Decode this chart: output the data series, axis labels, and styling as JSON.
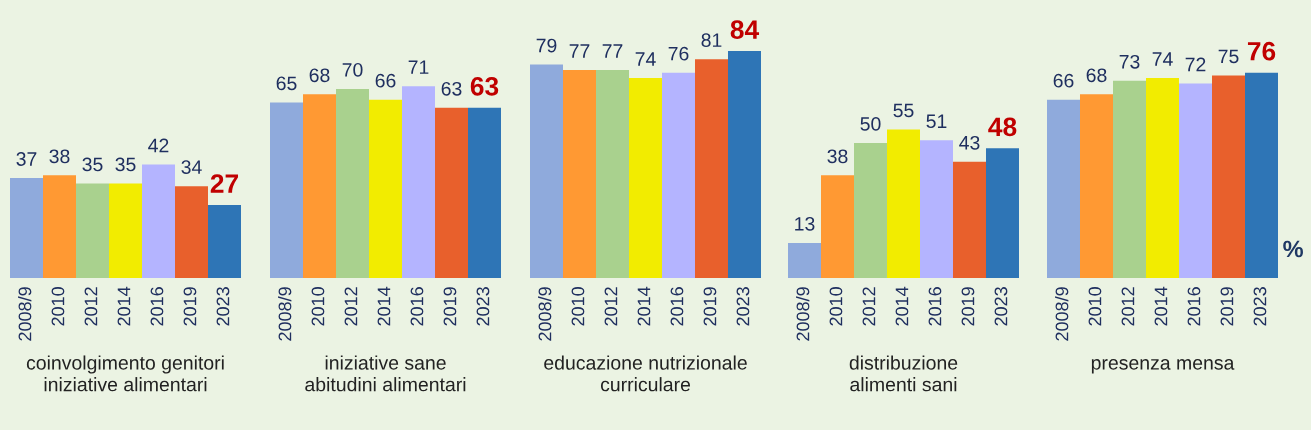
{
  "chart_data": [
    {
      "type": "bar",
      "xlabel": "coinvolgimento genitori\niniziative alimentari",
      "categories": [
        "2008/9",
        "2010",
        "2012",
        "2014",
        "2016",
        "2019",
        "2023"
      ],
      "values": [
        37,
        38,
        35,
        35,
        42,
        34,
        27
      ],
      "colors": [
        "#8faadc",
        "#ff9933",
        "#a9d18e",
        "#f2ec00",
        "#b4b4ff",
        "#e8602c",
        "#2e75b6"
      ],
      "data_labels": true
    },
    {
      "type": "bar",
      "xlabel": "iniziative sane\nabitudini alimentari",
      "categories": [
        "2008/9",
        "2010",
        "2012",
        "2014",
        "2016",
        "2019",
        "2023"
      ],
      "values": [
        65,
        68,
        70,
        66,
        71,
        63,
        63
      ],
      "colors": [
        "#8faadc",
        "#ff9933",
        "#a9d18e",
        "#f2ec00",
        "#b4b4ff",
        "#e8602c",
        "#2e75b6"
      ],
      "data_labels": true
    },
    {
      "type": "bar",
      "xlabel": "educazione nutrizionale\ncurriculare",
      "categories": [
        "2008/9",
        "2010",
        "2012",
        "2014",
        "2016",
        "2019",
        "2023"
      ],
      "values": [
        79,
        77,
        77,
        74,
        76,
        81,
        84
      ],
      "colors": [
        "#8faadc",
        "#ff9933",
        "#a9d18e",
        "#f2ec00",
        "#b4b4ff",
        "#e8602c",
        "#2e75b6"
      ],
      "data_labels": true
    },
    {
      "type": "bar",
      "xlabel": "distribuzione\nalimenti sani",
      "categories": [
        "2008/9",
        "2010",
        "2012",
        "2014",
        "2016",
        "2019",
        "2023"
      ],
      "values": [
        13,
        38,
        50,
        55,
        51,
        43,
        48
      ],
      "colors": [
        "#8faadc",
        "#ff9933",
        "#a9d18e",
        "#f2ec00",
        "#b4b4ff",
        "#e8602c",
        "#2e75b6"
      ],
      "data_labels": true
    },
    {
      "type": "bar",
      "xlabel": "presenza mensa",
      "categories": [
        "2008/9",
        "2010",
        "2012",
        "2014",
        "2016",
        "2019",
        "2023"
      ],
      "values": [
        66,
        68,
        73,
        74,
        72,
        75,
        76
      ],
      "colors": [
        "#8faadc",
        "#ff9933",
        "#a9d18e",
        "#f2ec00",
        "#b4b4ff",
        "#e8602c",
        "#2e75b6"
      ],
      "data_labels": true,
      "annotations": [
        "%"
      ]
    }
  ]
}
